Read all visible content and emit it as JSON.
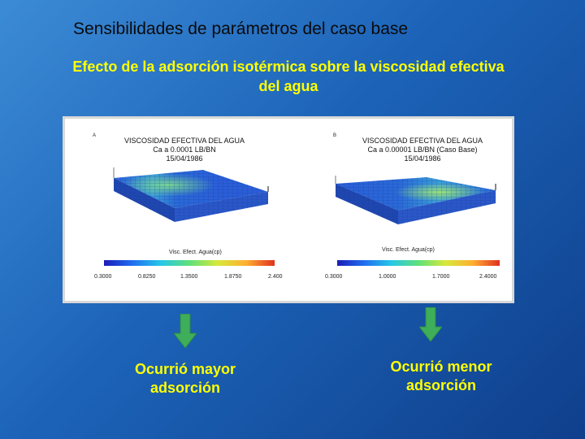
{
  "slide": {
    "title": "Sensibilidades de parámetros del caso base",
    "subtitle": "Efecto de la adsorción isotérmica sobre la viscosidad efectiva del agua"
  },
  "panel_a": {
    "label": "A",
    "title_line1": "VISCOSIDAD EFECTIVA DEL AGUA",
    "title_line2": "Ca a 0.0001 LB/BN",
    "title_line3": "15/04/1986",
    "colorbar_label": "Visc. Efect. Agua(cp)",
    "ticks": [
      "0.3000",
      "0.8250",
      "1.3500",
      "1.8750",
      "2.400"
    ]
  },
  "panel_b": {
    "label": "B",
    "title_line1": "VISCOSIDAD EFECTIVA DEL AGUA",
    "title_line2": "Ca  a  0.00001 LB/BN (Caso Base)",
    "title_line3": "15/04/1986",
    "colorbar_label": "Visc. Efect. Agua(cp)",
    "ticks": [
      "0.3000",
      "1.0000",
      "1.7000",
      "2.4000"
    ]
  },
  "outcomes": {
    "left": "Ocurrió mayor adsorción",
    "right": "Ocurrió menor adsorción"
  },
  "colors": {
    "subtitle": "#ffff00",
    "arrow": "#3fae5a"
  }
}
